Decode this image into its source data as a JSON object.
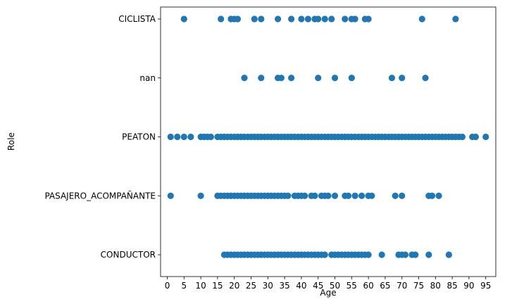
{
  "chart_data": {
    "type": "scatter",
    "xlabel": "Age",
    "ylabel": "Role",
    "xlim": [
      -2,
      98
    ],
    "x_ticks": [
      0,
      5,
      10,
      15,
      20,
      25,
      30,
      35,
      40,
      45,
      50,
      55,
      60,
      65,
      70,
      75,
      80,
      85,
      90,
      95
    ],
    "categories": [
      "CONDUCTOR",
      "PASAJERO_ACOMPAÑANTE",
      "PEATON",
      "nan",
      "CICLISTA"
    ],
    "color": "#1f77b4",
    "grid": false,
    "series": [
      {
        "category": "CICLISTA",
        "x": [
          5,
          16,
          19,
          20,
          21,
          26,
          28,
          33,
          37,
          40,
          42,
          44,
          45,
          47,
          49,
          53,
          55,
          56,
          59,
          60,
          76,
          86
        ]
      },
      {
        "category": "nan",
        "x": [
          23,
          28,
          33,
          34,
          37,
          45,
          50,
          55,
          67,
          70,
          77
        ]
      },
      {
        "category": "PEATON",
        "x": [
          1,
          3,
          5,
          7,
          10,
          11,
          12,
          13,
          15,
          16,
          17,
          18,
          19,
          20,
          21,
          22,
          23,
          24,
          25,
          26,
          27,
          28,
          29,
          30,
          31,
          32,
          33,
          34,
          35,
          36,
          37,
          38,
          39,
          40,
          41,
          42,
          43,
          44,
          45,
          46,
          47,
          48,
          49,
          50,
          51,
          52,
          53,
          54,
          55,
          56,
          57,
          58,
          59,
          60,
          61,
          62,
          63,
          64,
          65,
          66,
          67,
          68,
          69,
          70,
          71,
          72,
          73,
          74,
          75,
          76,
          77,
          78,
          79,
          80,
          81,
          82,
          83,
          84,
          85,
          86,
          87,
          88,
          91,
          92,
          95
        ]
      },
      {
        "category": "PASAJERO_ACOMPAÑANTE",
        "x": [
          1,
          10,
          15,
          16,
          17,
          18,
          19,
          20,
          21,
          22,
          23,
          24,
          25,
          26,
          27,
          28,
          29,
          30,
          31,
          32,
          33,
          34,
          35,
          36,
          38,
          39,
          40,
          41,
          43,
          44,
          46,
          47,
          48,
          50,
          53,
          54,
          56,
          58,
          60,
          61,
          68,
          70,
          78,
          79,
          81
        ]
      },
      {
        "category": "CONDUCTOR",
        "x": [
          17,
          18,
          19,
          20,
          21,
          22,
          23,
          24,
          25,
          26,
          27,
          28,
          29,
          30,
          31,
          32,
          33,
          34,
          35,
          36,
          37,
          38,
          39,
          40,
          41,
          42,
          43,
          44,
          45,
          46,
          47,
          49,
          50,
          51,
          52,
          53,
          54,
          55,
          56,
          57,
          58,
          59,
          60,
          64,
          69,
          70,
          71,
          73,
          74,
          78,
          84
        ]
      }
    ]
  }
}
